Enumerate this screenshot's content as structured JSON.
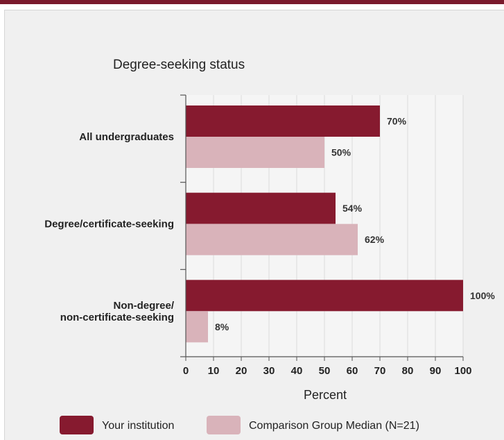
{
  "chart_data": {
    "type": "bar",
    "orientation": "horizontal",
    "title": "Degree-seeking status",
    "xlabel": "Percent",
    "ylabel": "",
    "xlim": [
      0,
      100
    ],
    "xticks": [
      0,
      10,
      20,
      30,
      40,
      50,
      60,
      70,
      80,
      90,
      100
    ],
    "grid": true,
    "legend_position": "bottom",
    "categories": [
      [
        "All undergraduates"
      ],
      [
        "Degree/certificate-seeking"
      ],
      [
        "Non-degree/",
        "non-certificate-seeking"
      ]
    ],
    "series": [
      {
        "name": "Your institution",
        "color": "#861a2f",
        "values": [
          70,
          54,
          100
        ],
        "labels": [
          "70%",
          "54%",
          "100%"
        ]
      },
      {
        "name": "Comparison Group Median (N=21)",
        "color": "#d9b3ba",
        "values": [
          50,
          62,
          8
        ],
        "labels": [
          "50%",
          "62%",
          "8%"
        ]
      }
    ]
  }
}
